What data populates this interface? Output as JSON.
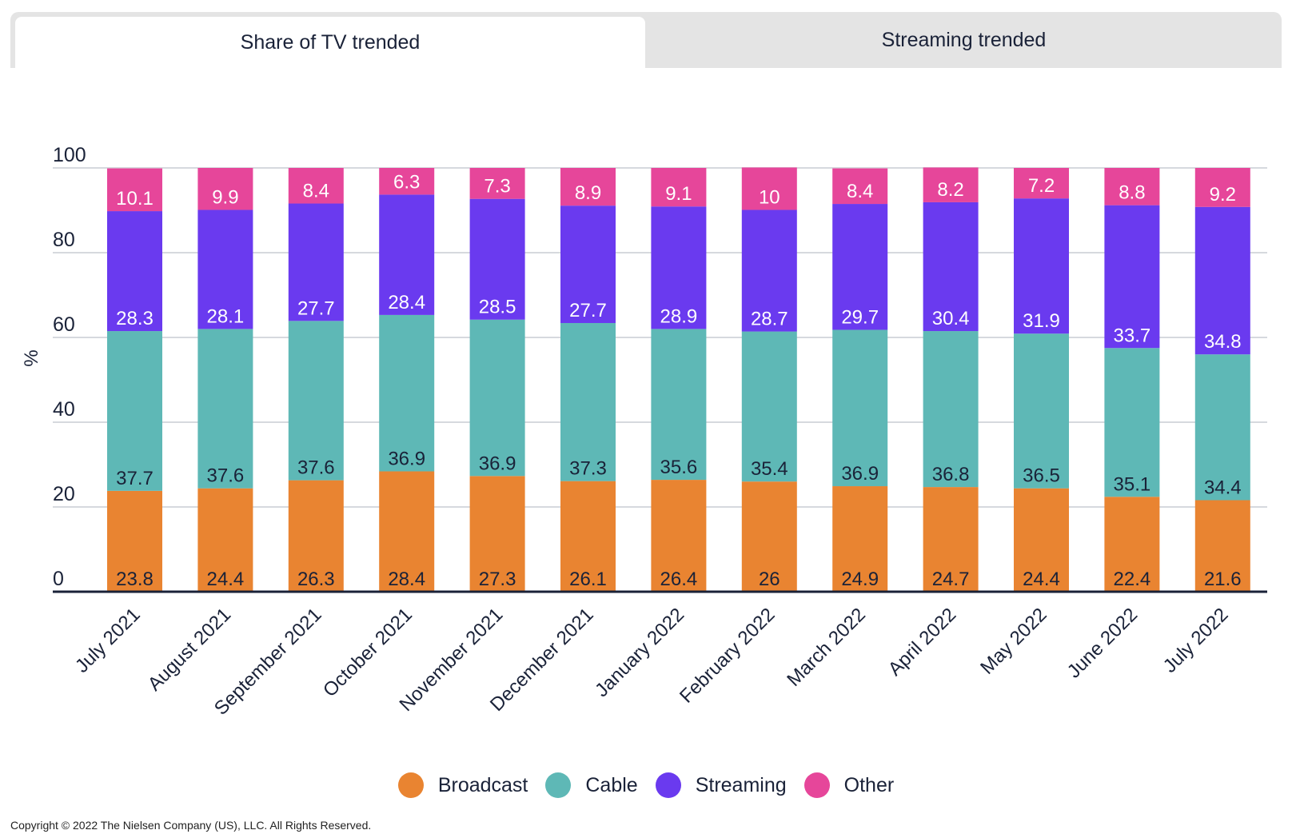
{
  "tabs": [
    {
      "label": "Share of TV trended",
      "active": true
    },
    {
      "label": "Streaming trended",
      "active": false
    }
  ],
  "chart_data": {
    "type": "bar",
    "stacked": true,
    "categories": [
      "July 2021",
      "August 2021",
      "September 2021",
      "October 2021",
      "November 2021",
      "December 2021",
      "January 2022",
      "February 2022",
      "March 2022",
      "April 2022",
      "May 2022",
      "June 2022",
      "July 2022"
    ],
    "series": [
      {
        "name": "Broadcast",
        "color": "#e98431",
        "label_color": "#1a2238",
        "values": [
          23.8,
          24.4,
          26.3,
          28.4,
          27.3,
          26.1,
          26.4,
          26,
          24.9,
          24.7,
          24.4,
          22.4,
          21.6
        ]
      },
      {
        "name": "Cable",
        "color": "#5eb8b6",
        "label_color": "#1a2238",
        "values": [
          37.7,
          37.6,
          37.6,
          36.9,
          36.9,
          37.3,
          35.6,
          35.4,
          36.9,
          36.8,
          36.5,
          35.1,
          34.4
        ]
      },
      {
        "name": "Streaming",
        "color": "#6a3aef",
        "label_color": "#ffffff",
        "values": [
          28.3,
          28.1,
          27.7,
          28.4,
          28.5,
          27.7,
          28.9,
          28.7,
          29.7,
          30.4,
          31.9,
          33.7,
          34.8
        ]
      },
      {
        "name": "Other",
        "color": "#e6469a",
        "label_color": "#ffffff",
        "values": [
          10.1,
          9.9,
          8.4,
          6.3,
          7.3,
          8.9,
          9.1,
          10,
          8.4,
          8.2,
          7.2,
          8.8,
          9.2
        ]
      }
    ],
    "ylabel": "%",
    "ylim": [
      0,
      100
    ],
    "yticks": [
      0,
      20,
      40,
      60,
      80,
      100
    ],
    "grid": true,
    "legend_position": "bottom"
  },
  "copyright": "Copyright © 2022 The Nielsen Company (US), LLC. All Rights Reserved."
}
